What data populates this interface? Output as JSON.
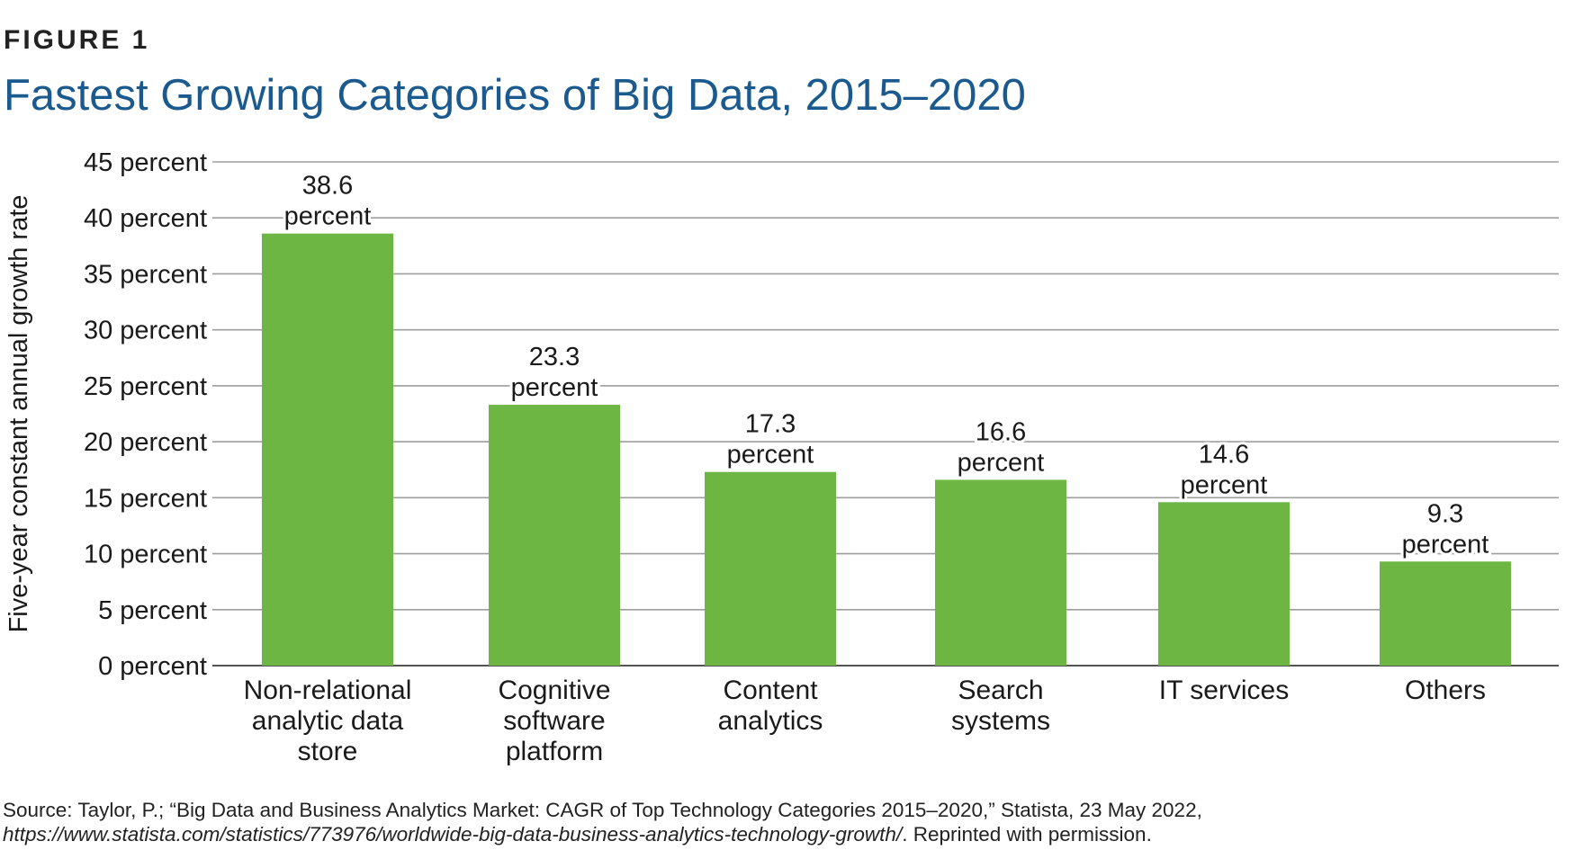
{
  "figure_label": "FIGURE 1",
  "chart_data": {
    "type": "bar",
    "title": "Fastest Growing Categories of Big Data, 2015–2020",
    "ylabel": "Five-year constant annual growth rate",
    "xlabel": "",
    "ylim": [
      0,
      45
    ],
    "y_ticks": [
      0,
      5,
      10,
      15,
      20,
      25,
      30,
      35,
      40,
      45
    ],
    "y_tick_suffix": " percent",
    "grid": true,
    "bar_color": "#6db643",
    "gridline_color": "#9e9e9e",
    "categories": [
      [
        "Non-relational",
        "analytic data",
        "store"
      ],
      [
        "Cognitive",
        "software",
        "platform"
      ],
      [
        "Content",
        "analytics"
      ],
      [
        "Search",
        "systems"
      ],
      [
        "IT services"
      ],
      [
        "Others"
      ]
    ],
    "values": [
      38.6,
      23.3,
      17.3,
      16.6,
      14.6,
      9.3
    ],
    "data_labels": [
      [
        "38.6",
        "percent"
      ],
      [
        "23.3",
        "percent"
      ],
      [
        "17.3",
        "percent"
      ],
      [
        "16.6",
        "percent"
      ],
      [
        "14.6",
        "percent"
      ],
      [
        "9.3",
        "percent"
      ]
    ]
  },
  "source": {
    "line1": "Source: Taylor, P.; “Big Data and Business Analytics Market: CAGR of Top Technology Categories 2015–2020,” Statista, 23 May 2022,",
    "url": "https://www.statista.com/statistics/773976/worldwide-big-data-business-analytics-technology-growth/",
    "line2_suffix": ". Reprinted with permission."
  }
}
